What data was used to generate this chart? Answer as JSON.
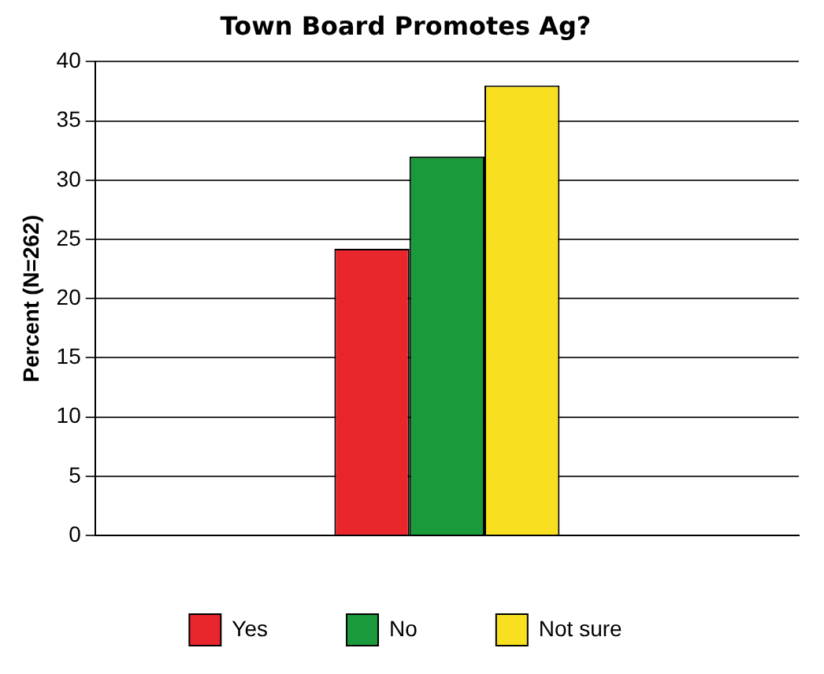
{
  "chart_data": {
    "type": "bar",
    "title": "Town Board Promotes Ag?",
    "ylabel": "Percent (N=262)",
    "categories": [
      null
    ],
    "series": [
      {
        "name": "Yes",
        "color": "#e8262c",
        "values": [
          24.2
        ]
      },
      {
        "name": "No",
        "color": "#1a9a3a",
        "values": [
          32
        ]
      },
      {
        "name": "Not sure",
        "color": "#f8e020",
        "values": [
          38
        ]
      }
    ],
    "ylim": [
      0,
      40
    ],
    "yticks": [
      0,
      5,
      10,
      15,
      20,
      25,
      30,
      35,
      40
    ],
    "grid": "y",
    "legend": "bottom",
    "tick_labels": "y"
  }
}
